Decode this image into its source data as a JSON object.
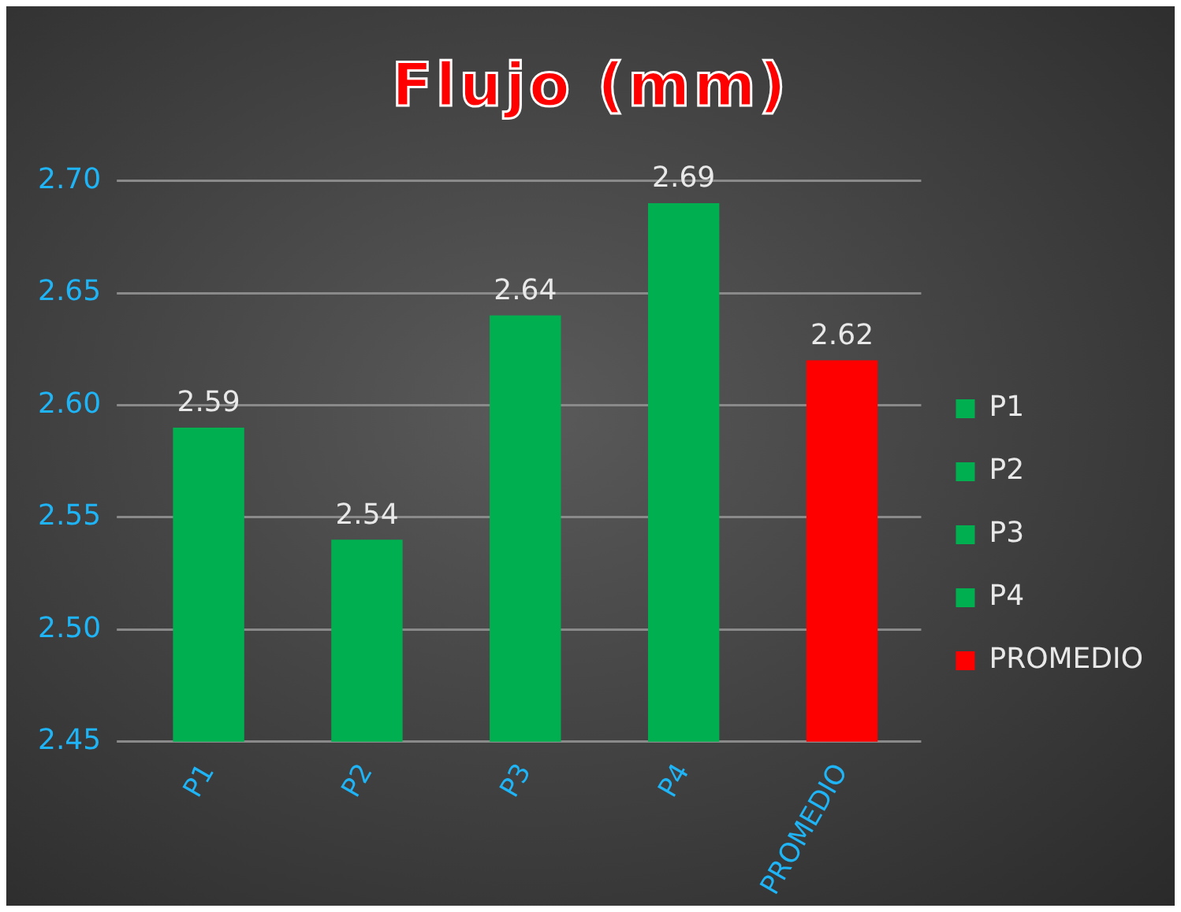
{
  "chart_data": {
    "type": "bar",
    "title": "Flujo (mm)",
    "categories": [
      "P1",
      "P2",
      "P3",
      "P4",
      "PROMEDIO"
    ],
    "series": [
      {
        "name": "P1",
        "color": "#00b050",
        "values": [
          2.59,
          null,
          null,
          null,
          null
        ]
      },
      {
        "name": "P2",
        "color": "#00b050",
        "values": [
          null,
          2.54,
          null,
          null,
          null
        ]
      },
      {
        "name": "P3",
        "color": "#00b050",
        "values": [
          null,
          null,
          2.64,
          null,
          null
        ]
      },
      {
        "name": "P4",
        "color": "#00b050",
        "values": [
          null,
          null,
          null,
          2.69,
          null
        ]
      },
      {
        "name": "PROMEDIO",
        "color": "#ff0000",
        "values": [
          null,
          null,
          null,
          null,
          2.62
        ]
      }
    ],
    "ylim": [
      2.45,
      2.7
    ],
    "yticks": [
      {
        "value": 2.45,
        "label": "2.45"
      },
      {
        "value": 2.5,
        "label": "2.50"
      },
      {
        "value": 2.55,
        "label": "2.55"
      },
      {
        "value": 2.6,
        "label": "2.60"
      },
      {
        "value": 2.65,
        "label": "2.65"
      },
      {
        "value": 2.7,
        "label": "2.70"
      }
    ],
    "grid": "y",
    "legend": "right",
    "data_labels": true
  }
}
